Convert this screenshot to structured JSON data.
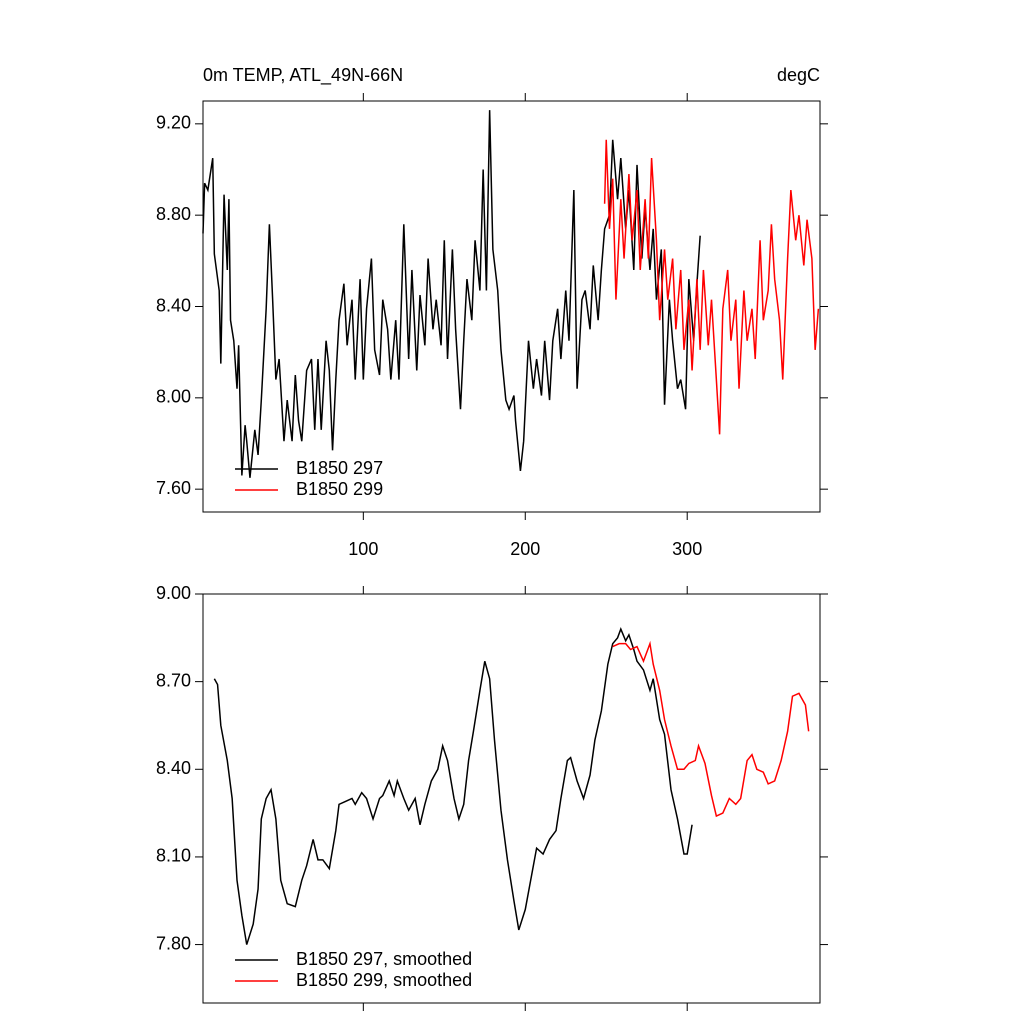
{
  "chart_data": [
    {
      "type": "line",
      "title": "0m TEMP, ATL_49N-66N",
      "units": "degC",
      "xlim": [
        1,
        382
      ],
      "xticks": [
        100,
        200,
        300
      ],
      "xtick_labels": true,
      "ylim": [
        7.5,
        9.3
      ],
      "yticks": [
        {
          "value": 7.6,
          "label": "7.60"
        },
        {
          "value": 8.0,
          "label": "8.00"
        },
        {
          "value": 8.4,
          "label": "8.40"
        },
        {
          "value": 8.8,
          "label": "8.80"
        },
        {
          "value": 9.2,
          "label": "9.20"
        }
      ],
      "legend": "lower left",
      "series": [
        {
          "name": "B1850 297",
          "color": "#000000",
          "x": [
            1,
            2,
            4,
            7,
            8,
            11,
            12,
            14,
            16,
            17,
            18,
            20,
            22,
            23,
            25,
            27,
            28,
            30,
            33,
            35,
            37,
            40,
            42,
            44,
            46,
            48,
            51,
            53,
            56,
            58,
            60,
            62,
            65,
            68,
            70,
            72,
            74,
            77,
            79,
            81,
            83,
            85,
            88,
            90,
            93,
            95,
            98,
            100,
            102,
            105,
            107,
            110,
            112,
            115,
            117,
            120,
            122,
            125,
            128,
            130,
            133,
            135,
            138,
            140,
            143,
            145,
            148,
            150,
            152,
            155,
            157,
            160,
            162,
            164,
            167,
            169,
            172,
            174,
            176,
            178,
            180,
            183,
            185,
            188,
            190,
            193,
            194,
            197,
            199,
            202,
            205,
            207,
            210,
            212,
            215,
            217,
            220,
            222,
            225,
            227,
            230,
            232,
            235,
            237,
            240,
            242,
            245,
            247,
            249,
            252,
            254,
            257,
            259,
            262,
            264,
            267,
            269,
            272,
            274,
            277,
            279,
            281,
            284,
            286,
            289,
            291,
            294,
            296,
            299,
            301,
            304,
            306,
            308
          ],
          "values": [
            8.72,
            8.94,
            8.91,
            9.05,
            8.63,
            8.47,
            8.15,
            8.89,
            8.56,
            8.87,
            8.34,
            8.25,
            8.04,
            8.23,
            7.66,
            7.88,
            7.81,
            7.65,
            7.86,
            7.75,
            7.99,
            8.39,
            8.76,
            8.43,
            8.08,
            8.17,
            7.81,
            7.99,
            7.81,
            8.1,
            7.9,
            7.81,
            8.12,
            8.17,
            7.86,
            8.17,
            7.86,
            8.25,
            8.12,
            7.77,
            8.08,
            8.34,
            8.5,
            8.23,
            8.43,
            8.08,
            8.52,
            8.08,
            8.39,
            8.61,
            8.21,
            8.1,
            8.43,
            8.3,
            8.08,
            8.34,
            8.08,
            8.76,
            8.17,
            8.56,
            8.12,
            8.45,
            8.23,
            8.61,
            8.3,
            8.43,
            8.23,
            8.69,
            8.17,
            8.65,
            8.3,
            7.95,
            8.25,
            8.52,
            8.34,
            8.69,
            8.47,
            9.0,
            8.47,
            9.26,
            8.65,
            8.47,
            8.21,
            7.99,
            7.95,
            8.01,
            7.9,
            7.68,
            7.81,
            8.25,
            8.04,
            8.17,
            8.01,
            8.25,
            7.99,
            8.25,
            8.39,
            8.17,
            8.47,
            8.25,
            8.91,
            8.04,
            8.43,
            8.47,
            8.3,
            8.58,
            8.34,
            8.56,
            8.74,
            8.8,
            9.13,
            8.87,
            9.05,
            8.74,
            8.91,
            8.56,
            9.02,
            8.61,
            8.83,
            8.56,
            8.74,
            8.43,
            8.65,
            7.97,
            8.43,
            8.25,
            8.04,
            8.08,
            7.95,
            8.52,
            8.25,
            8.5,
            8.71
          ]
        },
        {
          "name": "B1850 299",
          "color": "#ff0000",
          "x": [
            249,
            250,
            252,
            254,
            256,
            259,
            261,
            264,
            266,
            269,
            271,
            274,
            276,
            278,
            281,
            283,
            286,
            288,
            291,
            293,
            296,
            298,
            301,
            303,
            306,
            308,
            310,
            313,
            315,
            318,
            320,
            322,
            325,
            327,
            330,
            332,
            335,
            337,
            340,
            342,
            345,
            347,
            350,
            352,
            354,
            357,
            359,
            362,
            364,
            367,
            369,
            372,
            374,
            377,
            379,
            381
          ],
          "values": [
            8.85,
            9.13,
            8.74,
            8.96,
            8.43,
            8.87,
            8.61,
            8.98,
            8.69,
            8.91,
            8.56,
            8.87,
            8.61,
            9.05,
            8.69,
            8.34,
            8.65,
            8.43,
            8.61,
            8.3,
            8.56,
            8.21,
            8.43,
            8.12,
            8.52,
            8.21,
            8.56,
            8.23,
            8.43,
            8.08,
            7.84,
            8.39,
            8.56,
            8.25,
            8.43,
            8.04,
            8.47,
            8.25,
            8.39,
            8.17,
            8.69,
            8.34,
            8.47,
            8.76,
            8.52,
            8.34,
            8.08,
            8.61,
            8.91,
            8.69,
            8.8,
            8.58,
            8.78,
            8.61,
            8.21,
            8.39
          ]
        }
      ]
    },
    {
      "type": "line",
      "xlim": [
        1,
        382
      ],
      "xticks": [
        100,
        200,
        300
      ],
      "xtick_labels": false,
      "ylim": [
        7.6,
        9.0
      ],
      "yticks": [
        {
          "value": 7.8,
          "label": "7.80"
        },
        {
          "value": 8.1,
          "label": "8.10"
        },
        {
          "value": 8.4,
          "label": "8.40"
        },
        {
          "value": 8.7,
          "label": "8.70"
        },
        {
          "value": 9.0,
          "label": "9.00"
        }
      ],
      "legend": "lower left",
      "series": [
        {
          "name": "B1850 297, smoothed",
          "color": "#000000",
          "x": [
            8,
            10,
            12,
            16,
            19,
            22,
            25,
            28,
            32,
            35,
            37,
            40,
            43,
            46,
            49,
            53,
            58,
            62,
            65,
            69,
            72,
            75,
            79,
            83,
            85,
            89,
            93,
            95,
            99,
            102,
            106,
            110,
            112,
            116,
            119,
            121,
            125,
            128,
            132,
            135,
            138,
            142,
            146,
            149,
            152,
            156,
            159,
            162,
            165,
            168,
            172,
            175,
            178,
            181,
            185,
            189,
            193,
            196,
            200,
            204,
            207,
            211,
            215,
            219,
            222,
            226,
            228,
            232,
            236,
            240,
            243,
            247,
            251,
            254,
            257,
            259,
            262,
            264,
            267,
            269,
            273,
            277,
            279,
            283,
            286,
            290,
            294,
            298,
            300,
            303
          ],
          "values": [
            8.71,
            8.69,
            8.55,
            8.43,
            8.3,
            8.02,
            7.9,
            7.8,
            7.87,
            7.99,
            8.23,
            8.3,
            8.33,
            8.23,
            8.02,
            7.94,
            7.93,
            8.02,
            8.07,
            8.16,
            8.09,
            8.09,
            8.06,
            8.19,
            8.28,
            8.29,
            8.3,
            8.28,
            8.32,
            8.3,
            8.23,
            8.3,
            8.31,
            8.36,
            8.31,
            8.36,
            8.3,
            8.26,
            8.3,
            8.21,
            8.28,
            8.36,
            8.4,
            8.48,
            8.43,
            8.3,
            8.23,
            8.28,
            8.43,
            8.53,
            8.67,
            8.77,
            8.71,
            8.5,
            8.26,
            8.09,
            7.95,
            7.85,
            7.92,
            8.04,
            8.13,
            8.11,
            8.16,
            8.19,
            8.3,
            8.43,
            8.44,
            8.36,
            8.3,
            8.38,
            8.5,
            8.6,
            8.76,
            8.83,
            8.85,
            8.88,
            8.84,
            8.86,
            8.81,
            8.77,
            8.74,
            8.67,
            8.71,
            8.57,
            8.52,
            8.33,
            8.23,
            8.11,
            8.11,
            8.21
          ]
        },
        {
          "name": "B1850 299, smoothed",
          "color": "#ff0000",
          "x": [
            254,
            258,
            262,
            265,
            269,
            273,
            277,
            279,
            283,
            286,
            290,
            294,
            298,
            301,
            305,
            307,
            311,
            315,
            318,
            322,
            326,
            330,
            333,
            337,
            340,
            343,
            347,
            350,
            354,
            358,
            362,
            365,
            369,
            373,
            375
          ],
          "values": [
            8.82,
            8.83,
            8.83,
            8.81,
            8.82,
            8.77,
            8.83,
            8.76,
            8.67,
            8.57,
            8.48,
            8.4,
            8.4,
            8.42,
            8.43,
            8.48,
            8.42,
            8.31,
            8.24,
            8.25,
            8.3,
            8.28,
            8.3,
            8.43,
            8.45,
            8.4,
            8.39,
            8.35,
            8.36,
            8.43,
            8.53,
            8.65,
            8.66,
            8.62,
            8.53
          ]
        }
      ]
    }
  ]
}
